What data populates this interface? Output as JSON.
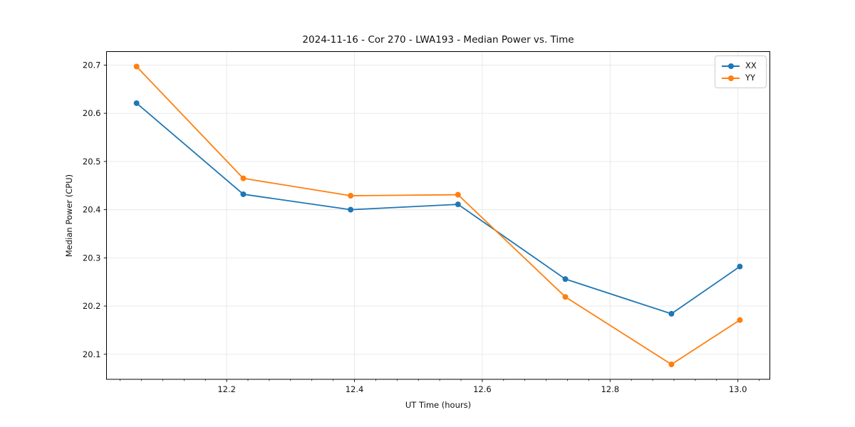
{
  "chart_data": {
    "type": "line",
    "title": "2024-11-16 - Cor 270 - LWA193 - Median Power vs. Time",
    "xlabel": "UT Time (hours)",
    "ylabel": "Median Power (CPU)",
    "x": [
      12.059,
      12.226,
      12.394,
      12.562,
      12.73,
      12.896,
      13.003
    ],
    "series": [
      {
        "name": "XX",
        "color": "#1f77b4",
        "values": [
          20.621,
          20.432,
          20.4,
          20.411,
          20.256,
          20.184,
          20.282
        ]
      },
      {
        "name": "YY",
        "color": "#ff7f0e",
        "values": [
          20.697,
          20.465,
          20.429,
          20.431,
          20.219,
          20.079,
          20.171
        ]
      }
    ],
    "xlim": [
      12.012,
      13.05
    ],
    "ylim": [
      20.048,
      20.728
    ],
    "xticks": [
      12.2,
      12.4,
      12.6,
      12.8,
      13.0
    ],
    "yticks": [
      20.1,
      20.2,
      20.3,
      20.4,
      20.5,
      20.6,
      20.7
    ],
    "x_minor_tick_interval": 0.0333333,
    "tick_decimals": 1,
    "grid": true,
    "grid_color": "#e7e7e7",
    "axes_color": "#000000",
    "text_color": "#111111",
    "legend_position": "upper right",
    "marker": "circle",
    "background": "#ffffff"
  }
}
